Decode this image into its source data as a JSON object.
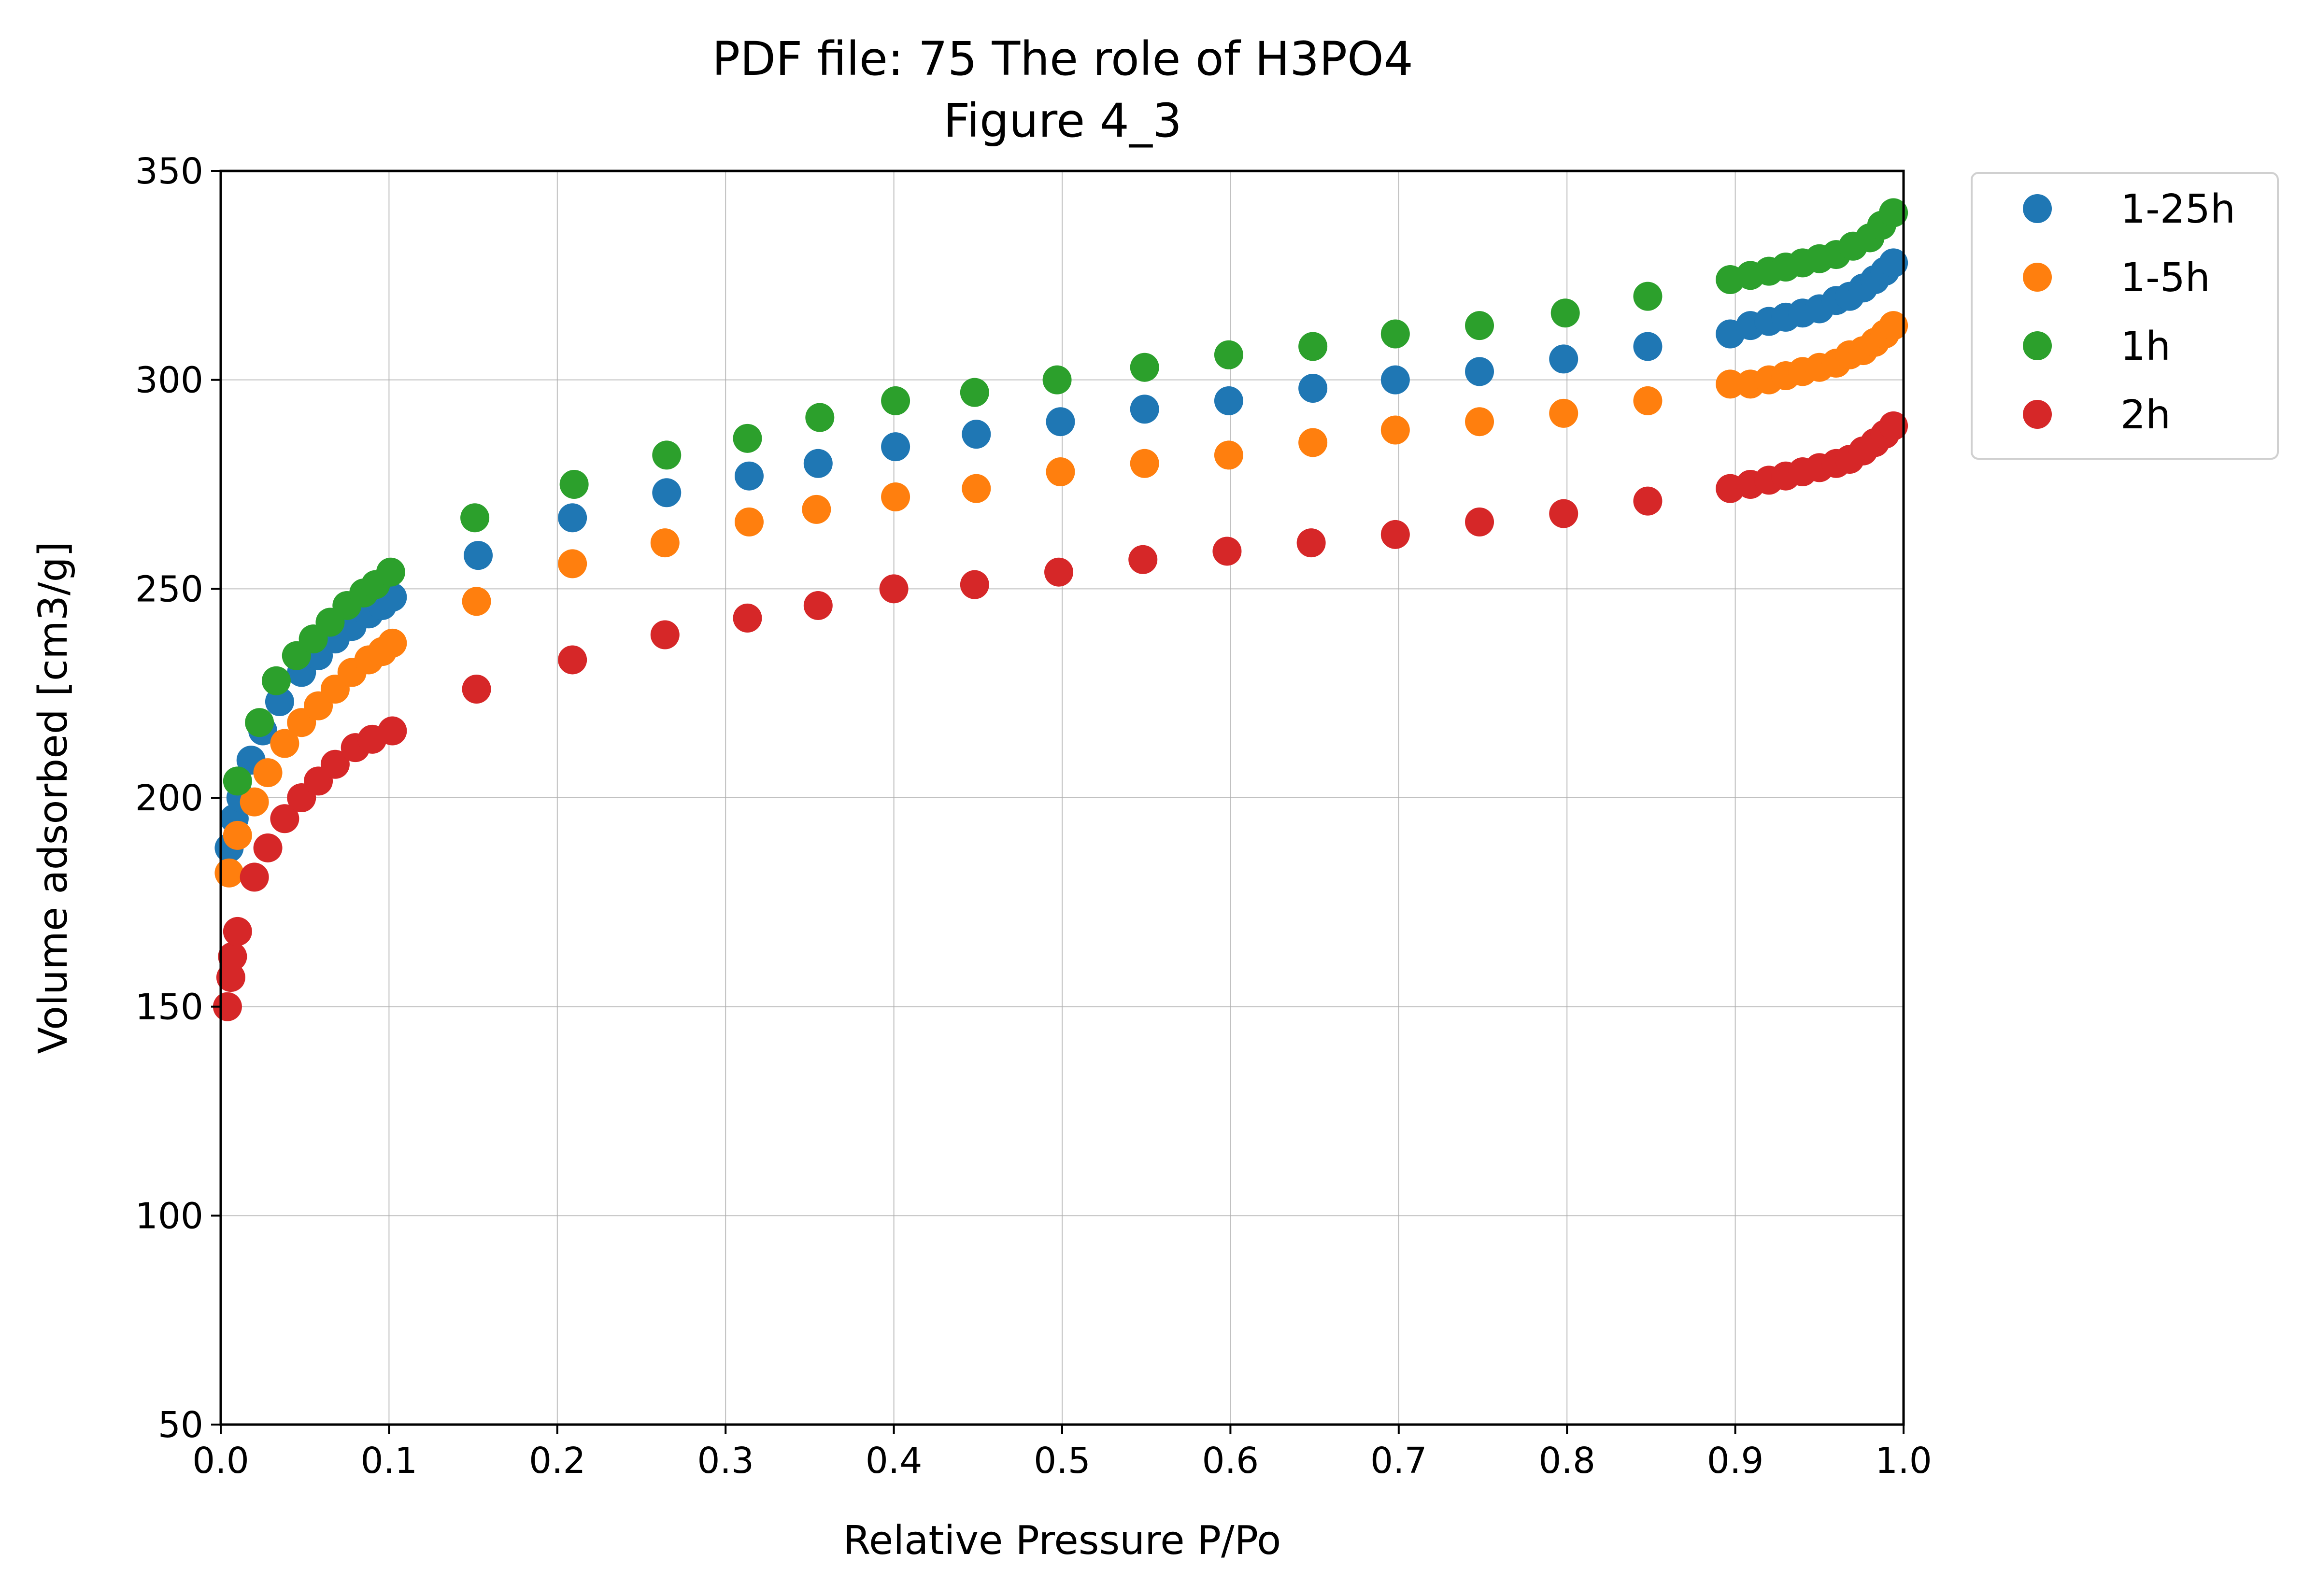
{
  "chart_data": {
    "type": "scatter",
    "title": "PDF file: 75 The role of H3PO4",
    "subtitle": "Figure 4_3",
    "xlabel": "Relative Pressure P/Po",
    "ylabel": "Volume adsorbed [cm3/g]",
    "xlim": [
      0.0,
      1.0
    ],
    "ylim": [
      50,
      350
    ],
    "x_ticks": [
      "0.0",
      "0.1",
      "0.2",
      "0.3",
      "0.4",
      "0.5",
      "0.6",
      "0.7",
      "0.8",
      "0.9",
      "1.0"
    ],
    "y_ticks": [
      "50",
      "100",
      "150",
      "200",
      "250",
      "300",
      "350"
    ],
    "grid": true,
    "legend_position": "outside-top-right",
    "series": [
      {
        "name": "1-25h",
        "color": "#1f77b4",
        "points": [
          [
            0.005,
            188
          ],
          [
            0.008,
            195
          ],
          [
            0.012,
            200
          ],
          [
            0.018,
            209
          ],
          [
            0.025,
            216
          ],
          [
            0.035,
            223
          ],
          [
            0.048,
            230
          ],
          [
            0.058,
            234
          ],
          [
            0.068,
            238
          ],
          [
            0.078,
            241
          ],
          [
            0.088,
            244
          ],
          [
            0.096,
            246
          ],
          [
            0.102,
            248
          ],
          [
            0.153,
            258
          ],
          [
            0.209,
            267
          ],
          [
            0.265,
            273
          ],
          [
            0.314,
            277
          ],
          [
            0.355,
            280
          ],
          [
            0.401,
            284
          ],
          [
            0.449,
            287
          ],
          [
            0.499,
            290
          ],
          [
            0.549,
            293
          ],
          [
            0.599,
            295
          ],
          [
            0.649,
            298
          ],
          [
            0.698,
            300
          ],
          [
            0.748,
            302
          ],
          [
            0.798,
            305
          ],
          [
            0.848,
            308
          ],
          [
            0.897,
            311
          ],
          [
            0.909,
            313
          ],
          [
            0.92,
            314
          ],
          [
            0.93,
            315
          ],
          [
            0.94,
            316
          ],
          [
            0.95,
            317
          ],
          [
            0.96,
            319
          ],
          [
            0.968,
            320
          ],
          [
            0.976,
            322
          ],
          [
            0.983,
            324
          ],
          [
            0.989,
            326
          ],
          [
            0.994,
            328
          ]
        ]
      },
      {
        "name": "1-5h",
        "color": "#ff7f0e",
        "points": [
          [
            0.005,
            182
          ],
          [
            0.01,
            191
          ],
          [
            0.02,
            199
          ],
          [
            0.028,
            206
          ],
          [
            0.038,
            213
          ],
          [
            0.048,
            218
          ],
          [
            0.058,
            222
          ],
          [
            0.068,
            226
          ],
          [
            0.078,
            230
          ],
          [
            0.088,
            233
          ],
          [
            0.096,
            235
          ],
          [
            0.102,
            237
          ],
          [
            0.152,
            247
          ],
          [
            0.209,
            256
          ],
          [
            0.264,
            261
          ],
          [
            0.314,
            266
          ],
          [
            0.354,
            269
          ],
          [
            0.401,
            272
          ],
          [
            0.449,
            274
          ],
          [
            0.499,
            278
          ],
          [
            0.549,
            280
          ],
          [
            0.599,
            282
          ],
          [
            0.649,
            285
          ],
          [
            0.698,
            288
          ],
          [
            0.748,
            290
          ],
          [
            0.798,
            292
          ],
          [
            0.848,
            295
          ],
          [
            0.897,
            299
          ],
          [
            0.909,
            299
          ],
          [
            0.92,
            300
          ],
          [
            0.93,
            301
          ],
          [
            0.94,
            302
          ],
          [
            0.95,
            303
          ],
          [
            0.96,
            304
          ],
          [
            0.968,
            306
          ],
          [
            0.976,
            307
          ],
          [
            0.983,
            309
          ],
          [
            0.989,
            311
          ],
          [
            0.994,
            313
          ]
        ]
      },
      {
        "name": "1h",
        "color": "#2ca02c",
        "points": [
          [
            0.01,
            204
          ],
          [
            0.023,
            218
          ],
          [
            0.033,
            228
          ],
          [
            0.045,
            234
          ],
          [
            0.055,
            238
          ],
          [
            0.065,
            242
          ],
          [
            0.075,
            246
          ],
          [
            0.085,
            249
          ],
          [
            0.092,
            251
          ],
          [
            0.101,
            254
          ],
          [
            0.151,
            267
          ],
          [
            0.21,
            275
          ],
          [
            0.265,
            282
          ],
          [
            0.313,
            286
          ],
          [
            0.356,
            291
          ],
          [
            0.401,
            295
          ],
          [
            0.448,
            297
          ],
          [
            0.497,
            300
          ],
          [
            0.549,
            303
          ],
          [
            0.599,
            306
          ],
          [
            0.649,
            308
          ],
          [
            0.698,
            311
          ],
          [
            0.748,
            313
          ],
          [
            0.799,
            316
          ],
          [
            0.848,
            320
          ],
          [
            0.897,
            324
          ],
          [
            0.909,
            325
          ],
          [
            0.92,
            326
          ],
          [
            0.93,
            327
          ],
          [
            0.94,
            328
          ],
          [
            0.95,
            329
          ],
          [
            0.96,
            330
          ],
          [
            0.97,
            332
          ],
          [
            0.98,
            334
          ],
          [
            0.987,
            337
          ],
          [
            0.994,
            340
          ]
        ]
      },
      {
        "name": "2h",
        "color": "#d62728",
        "points": [
          [
            0.004,
            150
          ],
          [
            0.006,
            157
          ],
          [
            0.007,
            162
          ],
          [
            0.01,
            168
          ],
          [
            0.02,
            181
          ],
          [
            0.028,
            188
          ],
          [
            0.038,
            195
          ],
          [
            0.048,
            200
          ],
          [
            0.058,
            204
          ],
          [
            0.068,
            208
          ],
          [
            0.08,
            212
          ],
          [
            0.09,
            214
          ],
          [
            0.102,
            216
          ],
          [
            0.152,
            226
          ],
          [
            0.209,
            233
          ],
          [
            0.264,
            239
          ],
          [
            0.313,
            243
          ],
          [
            0.355,
            246
          ],
          [
            0.4,
            250
          ],
          [
            0.448,
            251
          ],
          [
            0.498,
            254
          ],
          [
            0.548,
            257
          ],
          [
            0.598,
            259
          ],
          [
            0.648,
            261
          ],
          [
            0.698,
            263
          ],
          [
            0.748,
            266
          ],
          [
            0.798,
            268
          ],
          [
            0.848,
            271
          ],
          [
            0.897,
            274
          ],
          [
            0.909,
            275
          ],
          [
            0.92,
            276
          ],
          [
            0.93,
            277
          ],
          [
            0.94,
            278
          ],
          [
            0.95,
            279
          ],
          [
            0.96,
            280
          ],
          [
            0.968,
            281
          ],
          [
            0.976,
            283
          ],
          [
            0.983,
            285
          ],
          [
            0.989,
            287
          ],
          [
            0.994,
            289
          ]
        ]
      }
    ]
  }
}
